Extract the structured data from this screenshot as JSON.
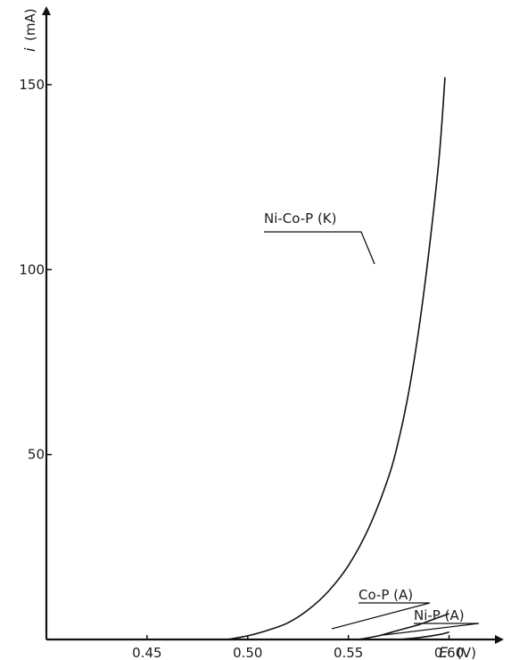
{
  "chart_data": {
    "type": "line",
    "title": "",
    "xlabel": "E",
    "xunit": "(V)",
    "ylabel": "i",
    "yunit": "(mA)",
    "xlim": [
      0.4,
      0.625
    ],
    "ylim": [
      0,
      170
    ],
    "xticks": [
      0.45,
      0.5,
      0.55,
      0.6
    ],
    "xtick_labels": [
      "0.45",
      "0.50",
      "0.55",
      "0.60"
    ],
    "yticks": [
      50,
      100,
      150
    ],
    "ytick_labels": [
      "50",
      "100",
      "150"
    ],
    "grid": false,
    "legend": "none",
    "series": [
      {
        "name": "Ni-Co-P (K)",
        "x": [
          0.49,
          0.5,
          0.51,
          0.52,
          0.53,
          0.54,
          0.55,
          0.56,
          0.57,
          0.575,
          0.58,
          0.585,
          0.59,
          0.595,
          0.598
        ],
        "y": [
          0,
          1,
          2.5,
          4.5,
          8,
          13,
          20,
          30,
          44,
          54,
          67,
          84,
          105,
          130,
          152
        ]
      },
      {
        "name": "Co-P (A)",
        "x": [
          0.555,
          0.565,
          0.575,
          0.585,
          0.59,
          0.6
        ],
        "y": [
          0,
          1,
          2.5,
          4,
          5,
          7
        ]
      },
      {
        "name": "Ni-P (A)",
        "x": [
          0.575,
          0.585,
          0.595,
          0.6
        ],
        "y": [
          0,
          0.5,
          1.3,
          2
        ]
      }
    ]
  }
}
